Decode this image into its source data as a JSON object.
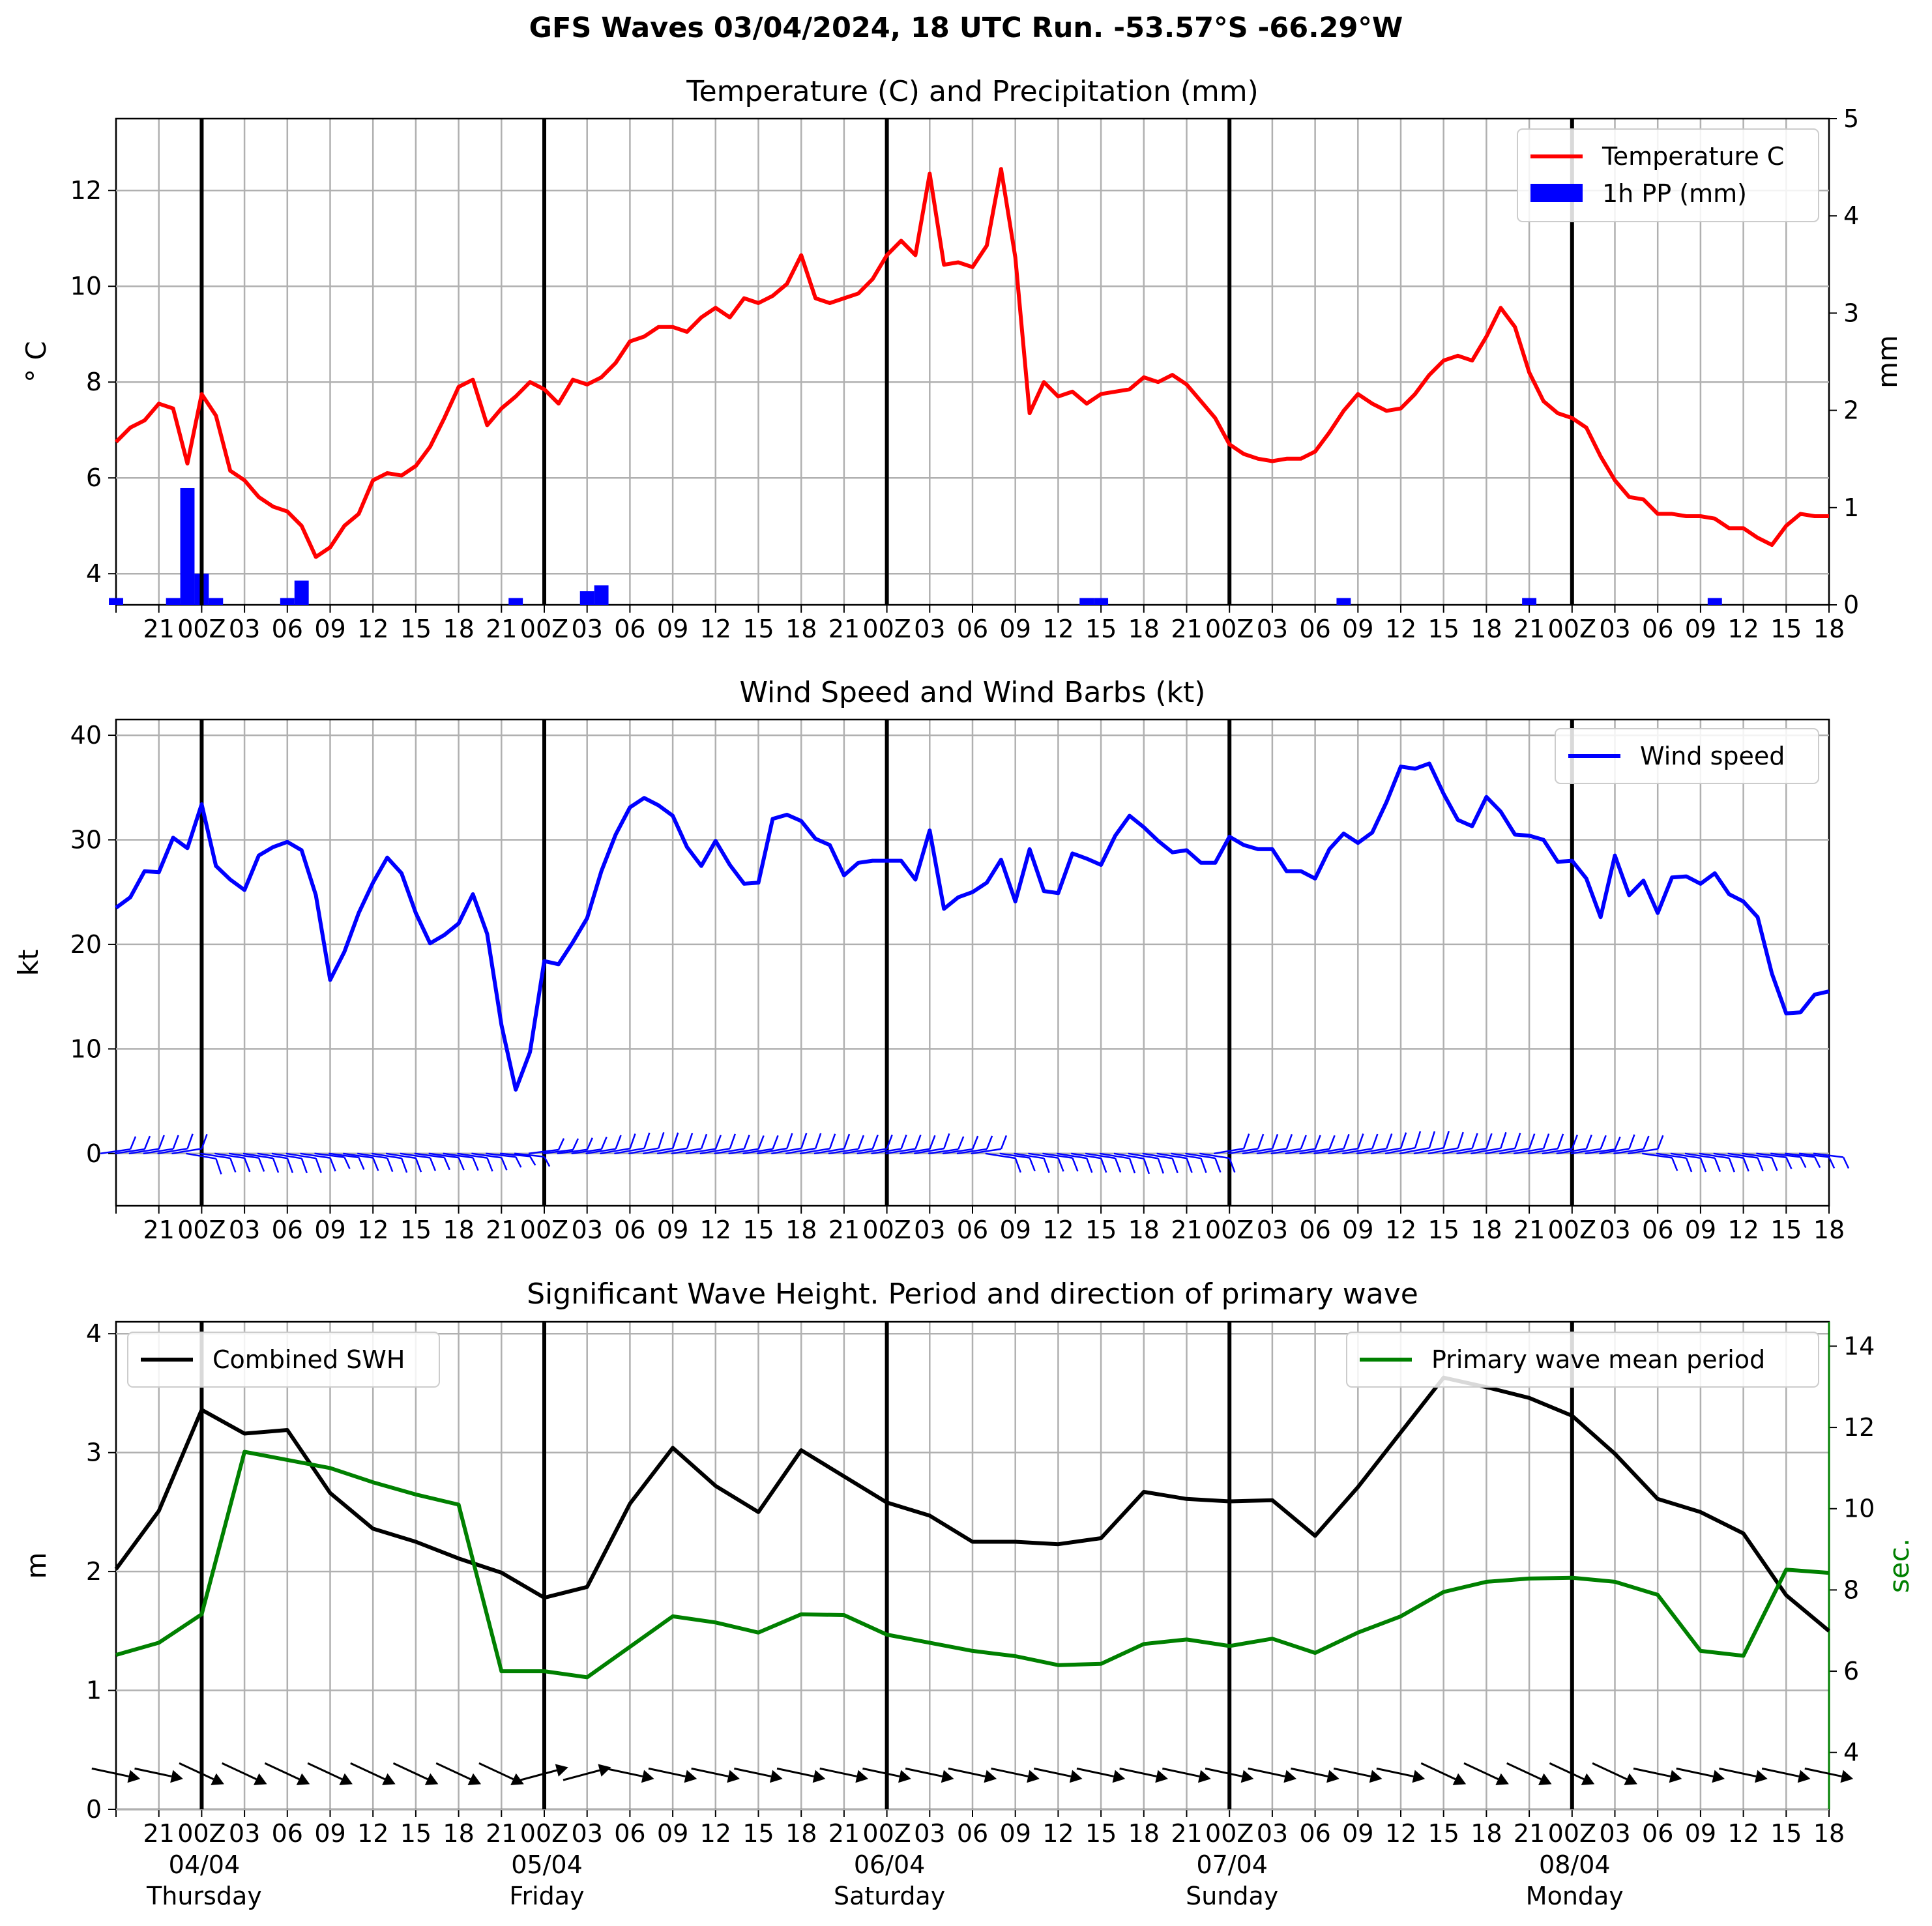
{
  "title": "GFS Waves 03/04/2024, 18 UTC Run. -53.57°S -66.29°W",
  "colors": {
    "temperature": "#ff0000",
    "precip": "#0000ff",
    "wind": "#0000ff",
    "swh": "#000000",
    "period": "#008000",
    "grid": "#b0b0b0",
    "day_line": "#000000"
  },
  "chart_data": [
    {
      "type": "line",
      "title": "Temperature (C) and Precipitation (mm)",
      "ylabel": "$^\\circ$C",
      "ylabel_display": "° C",
      "y2label": "mm",
      "ylim": [
        3.35,
        13.5
      ],
      "y2lim": [
        0,
        5
      ],
      "yticks": [
        "4",
        "6",
        "8",
        "10",
        "12"
      ],
      "y2ticks": [
        "0",
        "1",
        "2",
        "3",
        "4",
        "5"
      ],
      "xticklabels": [
        "21",
        "00Z",
        "03",
        "06",
        "09",
        "12",
        "15",
        "18",
        "21",
        "00Z",
        "03",
        "06",
        "09",
        "12",
        "15",
        "18",
        "21",
        "00Z",
        "03",
        "06",
        "09",
        "12",
        "15",
        "18",
        "21",
        "00Z",
        "03",
        "06",
        "09",
        "12",
        "15",
        "18",
        "21",
        "00Z",
        "03",
        "06",
        "09",
        "12",
        "15",
        "18"
      ],
      "x_hours_start": 18,
      "x_hours_end": 138,
      "grid": true,
      "legend_position": "top-right",
      "series": [
        {
          "name": "Temperature C",
          "type": "line",
          "x": [
            18,
            19,
            20,
            21,
            22,
            23,
            24,
            25,
            26,
            27,
            28,
            29,
            30,
            31,
            32,
            33,
            34,
            35,
            36,
            37,
            38,
            39,
            40,
            41,
            42,
            43,
            44,
            45,
            46,
            47,
            48,
            49,
            50,
            51,
            52,
            53,
            54,
            55,
            56,
            57,
            58,
            59,
            60,
            61,
            62,
            63,
            64,
            65,
            66,
            67,
            68,
            69,
            70,
            71,
            72,
            73,
            74,
            75,
            76,
            77,
            78,
            79,
            80,
            81,
            82,
            83,
            84,
            85,
            86,
            87,
            88,
            89,
            90,
            91,
            92,
            93,
            94,
            95,
            96,
            97,
            98,
            99,
            100,
            101,
            102,
            103,
            104,
            105,
            106,
            107,
            108,
            109,
            110,
            111,
            112,
            113,
            114,
            115,
            116,
            117,
            118,
            119,
            120,
            121,
            122,
            123,
            124,
            125,
            126,
            127,
            128,
            129,
            130,
            131,
            132,
            133,
            134,
            135,
            136,
            137,
            138
          ],
          "values": [
            6.75,
            7.05,
            7.2,
            7.55,
            7.45,
            6.3,
            7.75,
            7.3,
            6.15,
            5.95,
            5.6,
            5.4,
            5.3,
            5.0,
            4.35,
            4.55,
            5.0,
            5.25,
            5.95,
            6.1,
            6.05,
            6.25,
            6.65,
            7.25,
            7.9,
            8.05,
            7.1,
            7.45,
            7.7,
            8.0,
            7.85,
            7.55,
            8.05,
            7.95,
            8.1,
            8.4,
            8.85,
            8.95,
            9.15,
            9.15,
            9.05,
            9.35,
            9.55,
            9.35,
            9.75,
            9.65,
            9.8,
            10.05,
            10.65,
            9.75,
            9.65,
            9.75,
            9.85,
            10.15,
            10.65,
            10.95,
            10.65,
            12.35,
            10.45,
            10.5,
            10.4,
            10.85,
            12.45,
            10.6,
            7.35,
            8.0,
            7.7,
            7.8,
            7.55,
            7.75,
            7.8,
            7.85,
            8.1,
            8.0,
            8.15,
            7.95,
            7.6,
            7.25,
            6.7,
            6.5,
            6.4,
            6.35,
            6.4,
            6.4,
            6.55,
            6.95,
            7.4,
            7.75,
            7.55,
            7.4,
            7.45,
            7.75,
            8.15,
            8.45,
            8.55,
            8.45,
            8.95,
            9.55,
            9.15,
            8.2,
            7.6,
            7.35,
            7.25,
            7.05,
            6.45,
            5.95,
            5.6,
            5.55,
            5.25,
            5.25,
            5.2,
            5.2,
            5.15,
            4.95,
            4.95,
            4.75,
            4.6,
            5.0,
            5.25,
            5.2,
            5.2
          ]
        },
        {
          "name": "1h PP (mm)",
          "type": "bar",
          "x": [
            18,
            22,
            23,
            24,
            25,
            26,
            30,
            31,
            46,
            51,
            52,
            56,
            57,
            76,
            77,
            79,
            80,
            86,
            87,
            88,
            89,
            90,
            92,
            94,
            95,
            96,
            104,
            117,
            118,
            130,
            131
          ],
          "values": [
            0.07,
            0.07,
            1.2,
            0.32,
            0.07,
            0.0,
            0.07,
            0.25,
            0.07,
            0.14,
            0.2,
            0.0,
            0.0,
            0.0,
            0.0,
            0.0,
            0.0,
            0.07,
            0.07,
            0.0,
            0.0,
            0.0,
            0.0,
            0.0,
            0.0,
            0.0,
            0.07,
            0.07,
            0.0,
            0.07,
            0.0
          ]
        }
      ]
    },
    {
      "type": "line",
      "title": "Wind Speed and Wind Barbs (kt)",
      "ylabel": "kt",
      "ylim": [
        -5,
        41.5
      ],
      "yticks": [
        "−10",
        "0",
        "10",
        "20",
        "30",
        "40"
      ],
      "yticks_visible": [
        "0",
        "10",
        "20",
        "30",
        "40"
      ],
      "xticklabels": [
        "21",
        "00Z",
        "03",
        "06",
        "09",
        "12",
        "15",
        "18",
        "21",
        "00Z",
        "03",
        "06",
        "09",
        "12",
        "15",
        "18",
        "21",
        "00Z",
        "03",
        "06",
        "09",
        "12",
        "15",
        "18",
        "21",
        "00Z",
        "03",
        "06",
        "09",
        "12",
        "15",
        "18",
        "21",
        "00Z",
        "03",
        "06",
        "09",
        "12",
        "15",
        "18"
      ],
      "x_hours_start": 18,
      "x_hours_end": 138,
      "grid": true,
      "legend_position": "top-right",
      "barbs_at_y": 0,
      "series": [
        {
          "name": "Wind speed",
          "x": [
            18,
            19,
            20,
            21,
            22,
            23,
            24,
            25,
            26,
            27,
            28,
            29,
            30,
            31,
            32,
            33,
            34,
            35,
            36,
            37,
            38,
            39,
            40,
            41,
            42,
            43,
            44,
            45,
            46,
            47,
            48,
            49,
            50,
            51,
            52,
            53,
            54,
            55,
            56,
            57,
            58,
            59,
            60,
            61,
            62,
            63,
            64,
            65,
            66,
            67,
            68,
            69,
            70,
            71,
            72,
            73,
            74,
            75,
            76,
            77,
            78,
            79,
            80,
            81,
            82,
            83,
            84,
            85,
            86,
            87,
            88,
            89,
            90,
            91,
            92,
            93,
            94,
            95,
            96,
            97,
            98,
            99,
            100,
            101,
            102,
            103,
            104,
            105,
            106,
            107,
            108,
            109,
            110,
            111,
            112,
            113,
            114,
            115,
            116,
            117,
            118,
            119,
            120,
            121,
            122,
            123,
            124,
            125,
            126,
            127,
            128,
            129,
            130,
            131,
            132,
            133,
            134,
            135,
            136,
            137,
            138
          ],
          "values": [
            23.5,
            24.5,
            27.0,
            26.9,
            30.2,
            29.2,
            33.4,
            27.5,
            26.2,
            25.2,
            28.5,
            29.3,
            29.8,
            29.0,
            24.7,
            16.6,
            19.3,
            23.0,
            25.9,
            28.3,
            26.8,
            23.0,
            20.1,
            20.9,
            22.0,
            24.8,
            21.0,
            12.3,
            6.1,
            9.7,
            18.4,
            18.1,
            20.2,
            22.5,
            27.0,
            30.5,
            33.1,
            34.0,
            33.3,
            32.3,
            29.3,
            27.5,
            29.9,
            27.6,
            25.8,
            25.9,
            32.0,
            32.4,
            31.8,
            30.1,
            29.5,
            26.6,
            27.8,
            28.0,
            28.0,
            28.0,
            26.2,
            30.9,
            23.4,
            24.5,
            25.0,
            25.9,
            28.1,
            24.1,
            29.1,
            25.1,
            24.9,
            28.7,
            28.2,
            27.6,
            30.4,
            32.3,
            31.2,
            29.9,
            28.8,
            29.0,
            27.8,
            27.8,
            30.3,
            29.5,
            29.1,
            29.1,
            27.0,
            27.0,
            26.3,
            29.1,
            30.6,
            29.7,
            30.7,
            33.6,
            37.0,
            36.8,
            37.3,
            34.4,
            31.9,
            31.3,
            34.1,
            32.7,
            30.5,
            30.4,
            30.0,
            27.9,
            28.0,
            26.3,
            22.6,
            28.5,
            24.7,
            26.1,
            23.0,
            26.4,
            26.5,
            25.8,
            26.8,
            24.8,
            24.1,
            22.6,
            17.2,
            13.4,
            13.5,
            15.2,
            15.5
          ]
        }
      ]
    },
    {
      "type": "line",
      "title": "Significant Wave Height. Period and direction of primary wave",
      "ylabel": "m",
      "y2label": "sec.",
      "ylim": [
        0,
        4.1
      ],
      "y2lim": [
        2.6,
        14.6
      ],
      "yticks": [
        "0",
        "1",
        "2",
        "3",
        "4"
      ],
      "y2ticks": [
        "4",
        "6",
        "8",
        "10",
        "12",
        "14"
      ],
      "xticklabels": [
        "21",
        "00Z",
        "03",
        "06",
        "09",
        "12",
        "15",
        "18",
        "21",
        "00Z",
        "03",
        "06",
        "09",
        "12",
        "15",
        "18",
        "21",
        "00Z",
        "03",
        "06",
        "09",
        "12",
        "15",
        "18",
        "21",
        "00Z",
        "03",
        "06",
        "09",
        "12",
        "15",
        "18",
        "21",
        "00Z",
        "03",
        "06",
        "09",
        "12",
        "15",
        "18"
      ],
      "date_labels": [
        {
          "date": "04/04",
          "day": "Thursday"
        },
        {
          "date": "05/04",
          "day": "Friday"
        },
        {
          "date": "06/04",
          "day": "Saturday"
        },
        {
          "date": "07/04",
          "day": "Sunday"
        },
        {
          "date": "08/04",
          "day": "Monday"
        }
      ],
      "x_hours_start": 18,
      "x_hours_end": 138,
      "grid": true,
      "legend_positions": {
        "Combined SWH": "top-left",
        "Primary wave mean period": "top-right"
      },
      "arrows_at_y": 0.3,
      "series": [
        {
          "name": "Combined SWH",
          "axis": "left",
          "x": [
            18,
            21,
            24,
            27,
            30,
            33,
            36,
            39,
            42,
            45,
            48,
            51,
            54,
            57,
            60,
            63,
            66,
            69,
            72,
            75,
            78,
            81,
            84,
            87,
            90,
            93,
            96,
            99,
            102,
            105,
            108,
            111,
            114,
            117,
            120,
            123,
            126,
            129,
            132,
            135,
            138
          ],
          "values": [
            2.02,
            2.51,
            3.36,
            3.16,
            3.19,
            2.66,
            2.36,
            2.25,
            2.11,
            1.99,
            1.78,
            1.87,
            2.57,
            3.04,
            2.72,
            2.5,
            3.02,
            2.8,
            2.58,
            2.47,
            2.25,
            2.25,
            2.23,
            2.28,
            2.67,
            2.61,
            2.59,
            2.6,
            2.3,
            2.71,
            3.17,
            3.63,
            3.55,
            3.46,
            3.31,
            2.99,
            2.61,
            2.5,
            2.32,
            1.8,
            1.5
          ]
        },
        {
          "name": "Primary wave mean period",
          "axis": "right",
          "x": [
            18,
            21,
            24,
            27,
            30,
            33,
            36,
            39,
            42,
            45,
            48,
            51,
            54,
            57,
            60,
            63,
            66,
            69,
            72,
            75,
            78,
            81,
            84,
            87,
            90,
            93,
            96,
            99,
            102,
            105,
            108,
            111,
            114,
            117,
            120,
            123,
            126,
            129,
            132,
            135,
            138
          ],
          "values": [
            6.4,
            6.7,
            7.4,
            11.4,
            11.2,
            11.0,
            10.65,
            10.35,
            10.1,
            6.0,
            6.0,
            5.85,
            6.6,
            7.35,
            7.2,
            6.95,
            7.4,
            7.38,
            6.9,
            6.7,
            6.5,
            6.37,
            6.15,
            6.18,
            6.67,
            6.78,
            6.62,
            6.8,
            6.45,
            6.95,
            7.35,
            7.95,
            8.2,
            8.28,
            8.3,
            8.2,
            7.88,
            6.5,
            6.38,
            8.5,
            8.42
          ]
        }
      ]
    }
  ]
}
